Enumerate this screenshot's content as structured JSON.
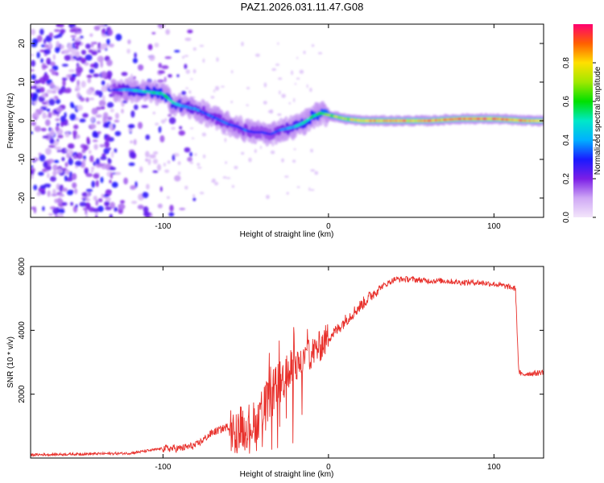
{
  "title": "PAZ1.2026.031.11.47.G08",
  "chart_data": [
    {
      "type": "heatmap",
      "name": "spectrogram",
      "xlabel": "Height of straight line (km)",
      "ylabel": "Frequency (Hz)",
      "xlim": [
        -180,
        130
      ],
      "ylim": [
        -25,
        25
      ],
      "xticks": [
        -100,
        0,
        100
      ],
      "yticks": [
        -20,
        -10,
        0,
        10,
        20
      ],
      "colorbar": {
        "label": "Normalized spectral amplitude",
        "range": [
          0.0,
          1.0
        ],
        "ticks": [
          0.0,
          0.2,
          0.4,
          0.6,
          0.8
        ]
      },
      "ridge": {
        "description": "dominant frequency track",
        "x": [
          -130,
          -120,
          -110,
          -100,
          -95,
          -90,
          -85,
          -80,
          -75,
          -70,
          -65,
          -60,
          -55,
          -50,
          -45,
          -40,
          -35,
          -30,
          -25,
          -20,
          -15,
          -10,
          -5,
          0,
          10,
          20,
          40,
          60,
          80,
          100,
          120,
          130
        ],
        "y": [
          8,
          8,
          7.5,
          7,
          5,
          4,
          3.5,
          3,
          2,
          1,
          0,
          -1,
          -1.5,
          -2.5,
          -3,
          -3,
          -3.5,
          -2.5,
          -2,
          -1.5,
          -0.5,
          1,
          2,
          1.5,
          0.5,
          0,
          0,
          0,
          0.5,
          0.5,
          0,
          0
        ],
        "amplitude": [
          0.3,
          0.45,
          0.5,
          0.55,
          0.5,
          0.45,
          0.4,
          0.4,
          0.35,
          0.35,
          0.35,
          0.35,
          0.3,
          0.35,
          0.3,
          0.3,
          0.3,
          0.35,
          0.4,
          0.45,
          0.5,
          0.55,
          0.6,
          0.65,
          0.75,
          0.85,
          0.85,
          0.85,
          0.9,
          0.9,
          0.85,
          0.8
        ]
      },
      "noise_region": {
        "x": [
          -180,
          -100
        ],
        "amplitude": [
          0.05,
          0.3
        ]
      }
    },
    {
      "type": "line",
      "name": "snr",
      "xlabel": "Height of straight line (km)",
      "ylabel": "SNR (10 * v/v)",
      "xlim": [
        -180,
        130
      ],
      "ylim": [
        0,
        6000
      ],
      "xticks": [
        -100,
        0,
        100
      ],
      "yticks": [
        2000,
        4000,
        6000
      ],
      "color": "#e8302b",
      "anchors": {
        "x": [
          -180,
          -120,
          -100,
          -90,
          -80,
          -70,
          -60,
          -55,
          -50,
          -45,
          -40,
          -35,
          -30,
          -25,
          -20,
          -15,
          -10,
          -5,
          0,
          5,
          10,
          20,
          30,
          40,
          50,
          60,
          70,
          80,
          90,
          100,
          110,
          113,
          115,
          117,
          120,
          125,
          130
        ],
        "y": [
          100,
          150,
          300,
          300,
          400,
          800,
          1000,
          1000,
          1000,
          1100,
          1500,
          2000,
          2300,
          2600,
          2800,
          3100,
          3300,
          3500,
          3800,
          4000,
          4300,
          4800,
          5300,
          5600,
          5600,
          5550,
          5550,
          5500,
          5500,
          5450,
          5350,
          5300,
          2700,
          2600,
          2650,
          2650,
          2700
        ]
      },
      "noise": [
        {
          "x": [
            -180,
            -100
          ],
          "amplitude": 40
        },
        {
          "x": [
            -100,
            -60
          ],
          "amplitude": 120
        },
        {
          "x": [
            -60,
            -20
          ],
          "amplitude": 700
        },
        {
          "x": [
            -20,
            0
          ],
          "amplitude": 500
        },
        {
          "x": [
            0,
            30
          ],
          "amplitude": 200
        },
        {
          "x": [
            30,
            115
          ],
          "amplitude": 90
        },
        {
          "x": [
            115,
            130
          ],
          "amplitude": 90
        }
      ]
    }
  ]
}
